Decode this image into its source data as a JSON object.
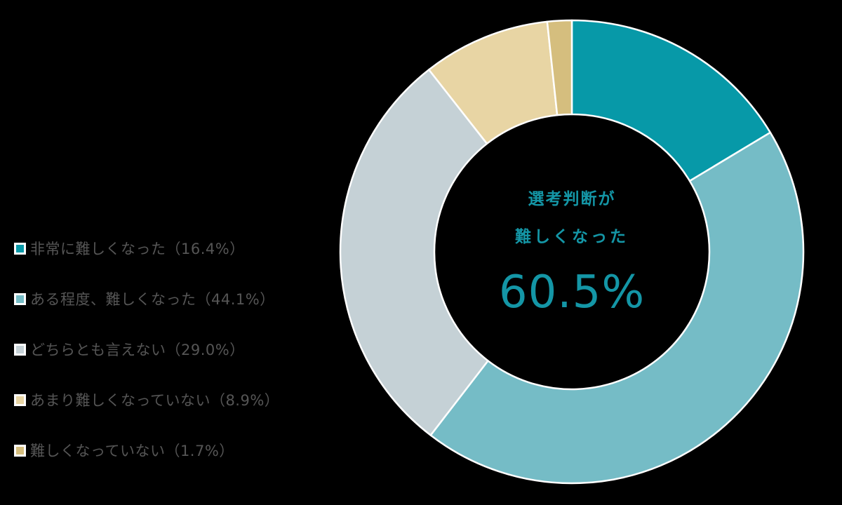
{
  "chart_data": {
    "type": "pie",
    "subtype": "donut",
    "title": "",
    "center_text": {
      "line1": "選考判断が",
      "line2": "難しくなった",
      "value": "60.5%"
    },
    "categories": [
      "非常に難しくなった",
      "ある程度、難しくなった",
      "どちらとも言えない",
      "あまり難しくなっていない",
      "難しくなっていない"
    ],
    "values": [
      16.4,
      44.1,
      29.0,
      8.9,
      1.7
    ],
    "colors": [
      "#0799A8",
      "#75BCC6",
      "#C5D1D6",
      "#E8D5A4",
      "#D5BE7E"
    ],
    "legend_position": "left",
    "start_angle": "12 o'clock, clockwise"
  },
  "legend": {
    "items": [
      {
        "label": "非常に難しくなった（16.4%）",
        "color": "#0799A8"
      },
      {
        "label": "ある程度、難しくなった（44.1%）",
        "color": "#75BCC6"
      },
      {
        "label": "どちらとも言えない（29.0%）",
        "color": "#C5D1D6"
      },
      {
        "label": "あまり難しくなっていない（8.9%）",
        "color": "#E8D5A4"
      },
      {
        "label": "難しくなっていない（1.7%）",
        "color": "#D5BE7E"
      }
    ]
  }
}
